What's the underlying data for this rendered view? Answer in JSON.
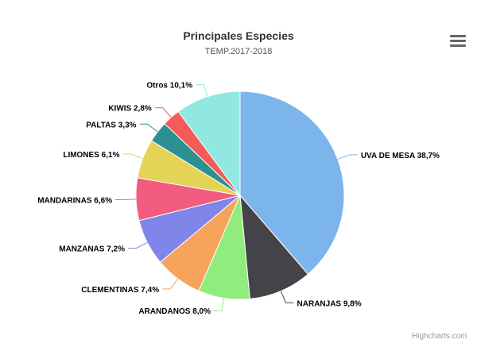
{
  "chart_data": {
    "type": "pie",
    "title": "Principales Especies",
    "subtitle": "TEMP.2017-2018",
    "slices": [
      {
        "name": "UVA DE MESA",
        "value": 38.7,
        "label": "UVA DE MESA 38,7%",
        "color": "#7cb5ec"
      },
      {
        "name": "NARANJAS",
        "value": 9.8,
        "label": "NARANJAS 9,8%",
        "color": "#434348"
      },
      {
        "name": "ARANDANOS",
        "value": 8.0,
        "label": "ARANDANOS 8,0%",
        "color": "#90ed7d"
      },
      {
        "name": "CLEMENTINAS",
        "value": 7.4,
        "label": "CLEMENTINAS 7,4%",
        "color": "#f7a35c"
      },
      {
        "name": "MANZANAS",
        "value": 7.2,
        "label": "MANZANAS 7,2%",
        "color": "#8085e9"
      },
      {
        "name": "MANDARINAS",
        "value": 6.6,
        "label": "MANDARINAS 6,6%",
        "color": "#f15c80"
      },
      {
        "name": "LIMONES",
        "value": 6.1,
        "label": "LIMONES 6,1%",
        "color": "#e4d354"
      },
      {
        "name": "PALTAS",
        "value": 3.3,
        "label": "PALTAS 3,3%",
        "color": "#2b908f"
      },
      {
        "name": "KIWIS",
        "value": 2.8,
        "label": "KIWIS 2,8%",
        "color": "#f45b5b"
      },
      {
        "name": "Otros",
        "value": 10.1,
        "label": "Otros 10,1%",
        "color": "#91e8e1"
      }
    ]
  },
  "credits": "Highcharts.com",
  "menu_icon": "hamburger-menu-icon"
}
